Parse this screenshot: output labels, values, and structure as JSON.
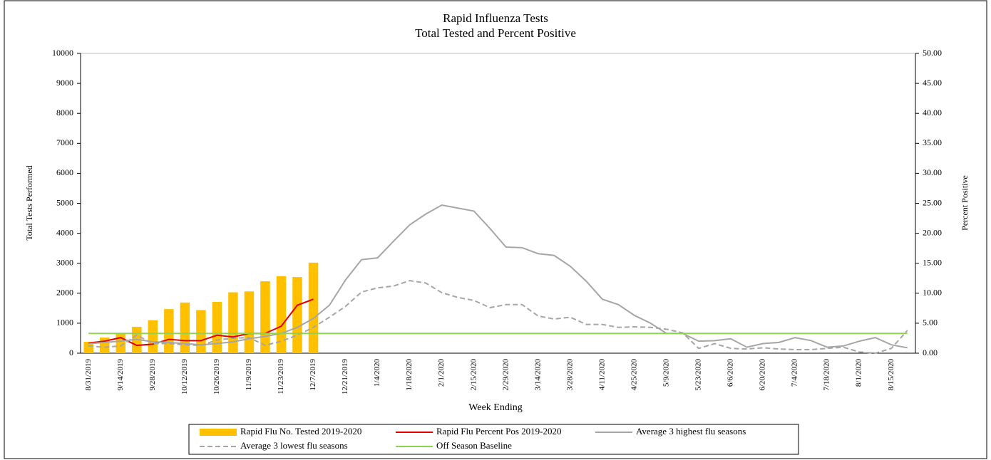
{
  "chart_data": {
    "type": "combo",
    "title": "Rapid Influenza Tests",
    "subtitle": "Total Tested and Percent Positive",
    "x_label": "Week Ending",
    "y_label": "Total Tests Performed",
    "y2_label": "Percent Positive",
    "categories": [
      "8/31/2019",
      null,
      "9/14/2019",
      null,
      "9/28/2019",
      null,
      "10/12/2019",
      null,
      "10/26/2019",
      null,
      "11/9/2019",
      null,
      "11/23/2019",
      null,
      "12/7/2019",
      null,
      "12/21/2019",
      null,
      "1/4/2020",
      null,
      "1/18/2020",
      null,
      "2/1/2020",
      null,
      "2/15/2020",
      null,
      "2/29/2020",
      null,
      "3/14/2020",
      null,
      "3/28/2020",
      null,
      "4/11/2020",
      null,
      "4/25/2020",
      null,
      "5/9/2020",
      null,
      "5/23/2020",
      null,
      "6/6/2020",
      null,
      "6/20/2020",
      null,
      "7/4/2020",
      null,
      "7/18/2020",
      null,
      "8/1/2020",
      null,
      "8/15/2020",
      null
    ],
    "ylim": [
      0,
      10000
    ],
    "yticks": [
      0,
      1000,
      2000,
      3000,
      4000,
      5000,
      6000,
      7000,
      8000,
      9000,
      10000
    ],
    "y2lim": [
      0,
      50
    ],
    "y2ticks": [
      {
        "value": 0,
        "label": "0.00"
      },
      {
        "value": 5,
        "label": "5.00"
      },
      {
        "value": 10,
        "label": "10.00"
      },
      {
        "value": 15,
        "label": "15.00"
      },
      {
        "value": 20,
        "label": "20.00"
      },
      {
        "value": 25,
        "label": "25.00"
      },
      {
        "value": 30,
        "label": "30.00"
      },
      {
        "value": 35,
        "label": "35.00"
      },
      {
        "value": 40,
        "label": "40.00"
      },
      {
        "value": 45,
        "label": "45.00"
      },
      {
        "value": 50,
        "label": "50.00"
      }
    ],
    "series": [
      {
        "name": "Rapid Flu No. Tested 2019-2020",
        "type": "bar",
        "color": "#ffc000",
        "values": [
          380,
          520,
          650,
          880,
          1100,
          1470,
          1690,
          1440,
          1710,
          2030,
          2060,
          2400,
          2570,
          2540,
          3020,
          null,
          null,
          null,
          null,
          null,
          null,
          null,
          null,
          null,
          null,
          null,
          null,
          null,
          null,
          null,
          null,
          null,
          null,
          null,
          null,
          null,
          null,
          null,
          null,
          null,
          null,
          null,
          null,
          null,
          null,
          null,
          null,
          null,
          null,
          null,
          null,
          null
        ]
      },
      {
        "name": "Rapid Flu Percent Pos 2019-2020",
        "type": "line",
        "axis": "y2",
        "color": "#e00000",
        "values": [
          1.7,
          2.0,
          2.6,
          1.3,
          1.5,
          2.3,
          2.1,
          2.1,
          3.0,
          2.7,
          3.3,
          3.3,
          4.5,
          8.0,
          9.0,
          null,
          null,
          null,
          null,
          null,
          null,
          null,
          null,
          null,
          null,
          null,
          null,
          null,
          null,
          null,
          null,
          null,
          null,
          null,
          null,
          null,
          null,
          null,
          null,
          null,
          null,
          null,
          null,
          null,
          null,
          null,
          null,
          null,
          null,
          null,
          null,
          null
        ]
      },
      {
        "name": "Average 3 highest flu seasons",
        "type": "line",
        "axis": "y2",
        "color": "#a6a6a6",
        "values": [
          1.6,
          1.8,
          2.0,
          2.3,
          1.9,
          1.8,
          1.6,
          1.4,
          1.6,
          1.9,
          2.4,
          2.8,
          3.3,
          4.3,
          5.8,
          8.0,
          12.2,
          15.6,
          15.9,
          18.7,
          21.4,
          23.2,
          24.7,
          24.2,
          23.7,
          20.8,
          17.7,
          17.6,
          16.6,
          16.3,
          14.5,
          12.0,
          9.0,
          8.1,
          6.3,
          5.0,
          3.3,
          3.3,
          2.0,
          2.1,
          2.4,
          1.0,
          1.6,
          1.8,
          2.6,
          2.1,
          1.0,
          1.2,
          2.0,
          2.6,
          1.4,
          0.9
        ]
      },
      {
        "name": "Average 3 lowest flu seasons",
        "type": "line",
        "axis": "y2",
        "dashed": true,
        "color": "#a6a6a6",
        "values": [
          1.2,
          1.0,
          1.2,
          3.0,
          1.6,
          1.6,
          1.4,
          1.3,
          2.2,
          2.5,
          2.6,
          1.3,
          2.0,
          3.0,
          4.3,
          6.0,
          7.8,
          10.2,
          10.9,
          11.2,
          12.1,
          11.7,
          10.1,
          9.3,
          8.8,
          7.6,
          8.1,
          8.1,
          6.2,
          5.7,
          6.0,
          4.8,
          4.8,
          4.3,
          4.4,
          4.3,
          4.0,
          3.4,
          0.8,
          1.6,
          0.8,
          0.7,
          0.9,
          0.7,
          0.6,
          0.6,
          0.8,
          1.0,
          0.2,
          0.0,
          0.8,
          3.8
        ]
      },
      {
        "name": "Off Season Baseline",
        "type": "line",
        "axis": "y2",
        "color": "#92d050",
        "values": [
          3.3,
          3.3,
          3.3,
          3.3,
          3.3,
          3.3,
          3.3,
          3.3,
          3.3,
          3.3,
          3.3,
          3.3,
          3.3,
          3.3,
          3.3,
          3.3,
          3.3,
          3.3,
          3.3,
          3.3,
          3.3,
          3.3,
          3.3,
          3.3,
          3.3,
          3.3,
          3.3,
          3.3,
          3.3,
          3.3,
          3.3,
          3.3,
          3.3,
          3.3,
          3.3,
          3.3,
          3.3,
          3.3,
          3.3,
          3.3,
          3.3,
          3.3,
          3.3,
          3.3,
          3.3,
          3.3,
          3.3,
          3.3,
          3.3,
          3.3,
          3.3,
          3.3
        ]
      }
    ]
  }
}
